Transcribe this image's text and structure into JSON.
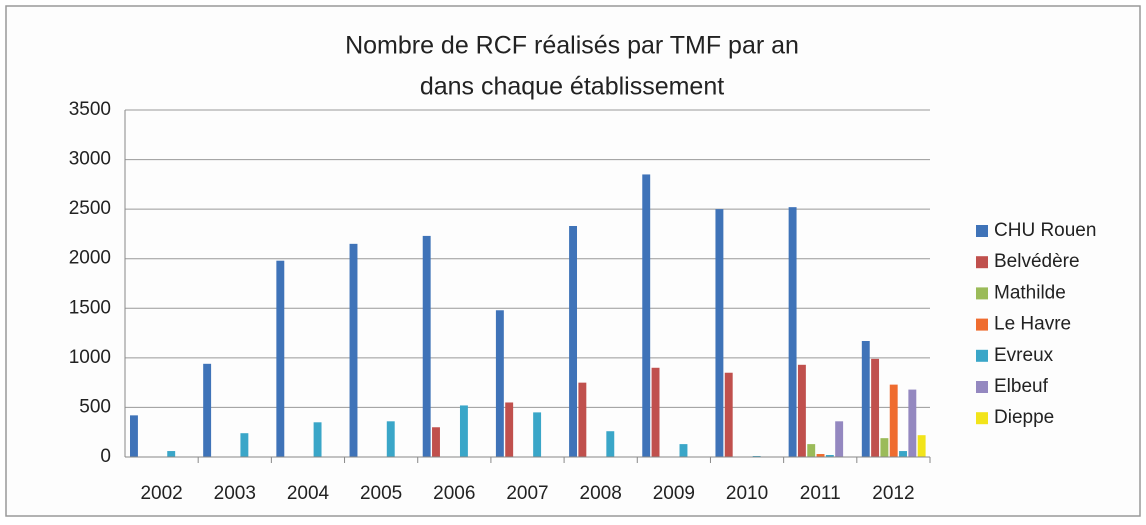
{
  "chart_data": {
    "type": "bar",
    "title": [
      "Nombre de RCF réalisés par TMF par an",
      "dans chaque établissement"
    ],
    "categories": [
      "2002",
      "2003",
      "2004",
      "2005",
      "2006",
      "2007",
      "2008",
      "2009",
      "2010",
      "2011",
      "2012"
    ],
    "series": [
      {
        "name": "CHU Rouen",
        "color": "#3f73b8",
        "values": [
          420,
          940,
          1980,
          2150,
          2230,
          1480,
          2330,
          2850,
          2500,
          2520,
          1170
        ]
      },
      {
        "name": "Belvédère",
        "color": "#c0504d",
        "values": [
          0,
          0,
          0,
          0,
          300,
          550,
          750,
          900,
          850,
          930,
          990
        ]
      },
      {
        "name": "Mathilde",
        "color": "#9bbb59",
        "values": [
          0,
          0,
          0,
          0,
          0,
          0,
          0,
          0,
          0,
          130,
          190
        ]
      },
      {
        "name": "Le Havre",
        "color": "#ef6c2f",
        "values": [
          0,
          0,
          0,
          0,
          0,
          0,
          0,
          0,
          0,
          30,
          730
        ]
      },
      {
        "name": "Evreux",
        "color": "#3aa6c8",
        "values": [
          60,
          240,
          350,
          360,
          520,
          450,
          260,
          130,
          10,
          20,
          60
        ]
      },
      {
        "name": "Elbeuf",
        "color": "#9488c0",
        "values": [
          0,
          0,
          0,
          0,
          0,
          0,
          0,
          0,
          0,
          360,
          680
        ]
      },
      {
        "name": "Dieppe",
        "color": "#f2e41a",
        "values": [
          0,
          0,
          0,
          0,
          0,
          0,
          0,
          0,
          0,
          0,
          220
        ]
      }
    ],
    "ylim": [
      0,
      3500
    ],
    "yticks": [
      0,
      500,
      1000,
      1500,
      2000,
      2500,
      3000,
      3500
    ],
    "grid": true,
    "legend": "right"
  }
}
